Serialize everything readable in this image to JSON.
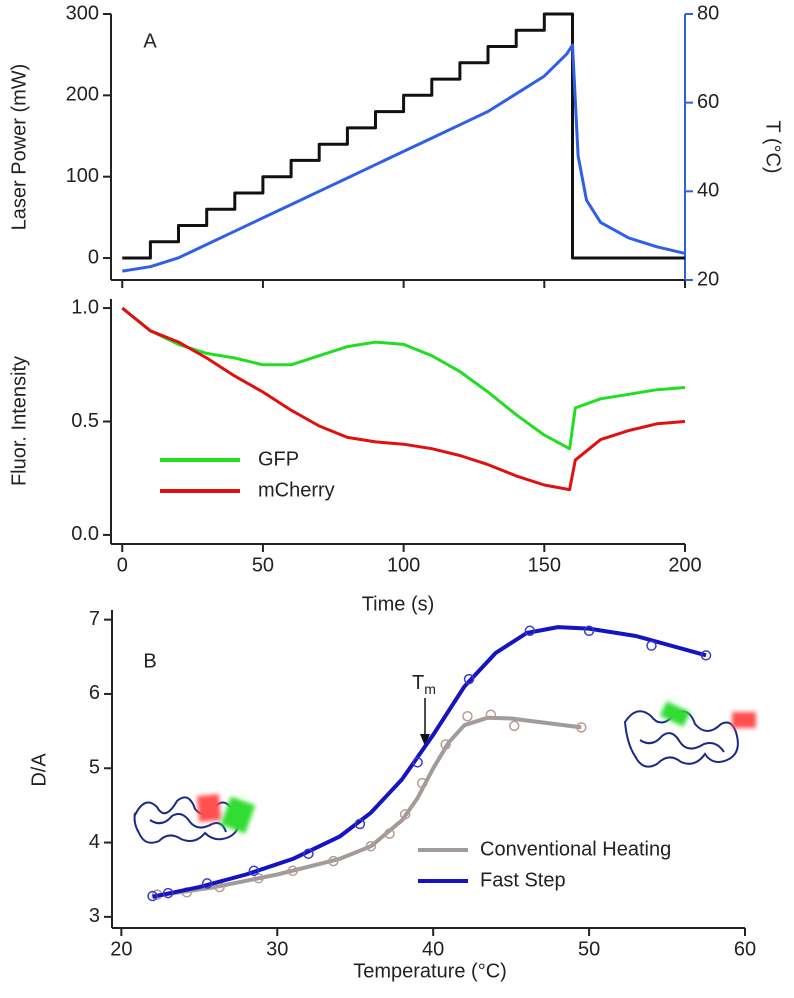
{
  "chart_data": [
    {
      "type": "line",
      "panel_label": "A",
      "ylabel": "Laser Power (mW)",
      "y2label": "T (°C)",
      "xlim": [
        -4,
        200
      ],
      "xticks": [
        0,
        50,
        100,
        150,
        200
      ],
      "ylim": [
        -27,
        300
      ],
      "yticks": [
        0,
        100,
        200,
        300
      ],
      "y2lim": [
        20,
        80
      ],
      "y2ticks": [
        20,
        40,
        60,
        80
      ],
      "y2color": "#2f5fe6",
      "series": [
        {
          "color": "#111111",
          "x": [
            0,
            10,
            10,
            20,
            20,
            30,
            30,
            40,
            40,
            50,
            50,
            60,
            60,
            70,
            70,
            80,
            80,
            90,
            90,
            100,
            100,
            110,
            110,
            120,
            120,
            130,
            130,
            140,
            140,
            150,
            150,
            160,
            160,
            200
          ],
          "values": [
            0,
            0,
            20,
            20,
            40,
            40,
            60,
            60,
            80,
            80,
            100,
            100,
            120,
            120,
            140,
            140,
            160,
            160,
            180,
            180,
            200,
            200,
            220,
            220,
            240,
            240,
            260,
            260,
            280,
            280,
            300,
            300,
            0,
            0
          ]
        },
        {
          "color": "#2f5fe6",
          "axis": "y2",
          "x": [
            0,
            10,
            20,
            30,
            40,
            50,
            60,
            70,
            80,
            90,
            100,
            110,
            120,
            130,
            140,
            150,
            158,
            160,
            162,
            165,
            170,
            180,
            190,
            200
          ],
          "values": [
            22,
            23,
            25,
            28,
            31,
            34,
            37,
            40,
            43,
            46,
            49,
            52,
            55,
            58,
            62,
            66,
            71,
            73,
            48,
            38,
            33,
            29.5,
            27.5,
            26
          ]
        }
      ]
    },
    {
      "type": "line",
      "ylabel": "Fluor. Intensity",
      "xlabel": "Time (s)",
      "legend": "lower-left",
      "xlim": [
        -4,
        200
      ],
      "xticks": [
        0,
        50,
        100,
        150,
        200
      ],
      "ylim": [
        -0.04,
        1.04
      ],
      "yticks": [
        {
          "value": 0,
          "label": "0.0"
        },
        0.5,
        {
          "value": 1,
          "label": "1.0"
        }
      ],
      "series": [
        {
          "name": "GFP",
          "color": "#22dd22",
          "x": [
            0,
            10,
            20,
            30,
            40,
            50,
            60,
            70,
            80,
            90,
            100,
            110,
            120,
            130,
            140,
            150,
            159,
            161,
            170,
            180,
            190,
            200
          ],
          "values": [
            1.0,
            0.9,
            0.84,
            0.8,
            0.78,
            0.75,
            0.75,
            0.79,
            0.83,
            0.85,
            0.84,
            0.79,
            0.72,
            0.63,
            0.53,
            0.44,
            0.38,
            0.56,
            0.6,
            0.62,
            0.64,
            0.65
          ]
        },
        {
          "name": "mCherry",
          "color": "#e01010",
          "x": [
            0,
            10,
            20,
            30,
            40,
            50,
            60,
            70,
            80,
            90,
            100,
            110,
            120,
            130,
            140,
            150,
            159,
            161,
            170,
            180,
            190,
            200
          ],
          "values": [
            1.0,
            0.9,
            0.85,
            0.78,
            0.7,
            0.63,
            0.55,
            0.48,
            0.43,
            0.41,
            0.4,
            0.38,
            0.35,
            0.31,
            0.26,
            0.22,
            0.2,
            0.33,
            0.42,
            0.46,
            0.49,
            0.5
          ]
        }
      ]
    },
    {
      "type": "scatter",
      "panel_label": "B",
      "ylabel": "D/A",
      "xlabel": "Temperature (°C)",
      "legend": "lower-right",
      "annotation": {
        "text": "T",
        "subscript": "m"
      },
      "xlim": [
        19.4,
        60
      ],
      "xticks": [
        20,
        30,
        40,
        50,
        60
      ],
      "ylim": [
        2.85,
        7.13
      ],
      "yticks": [
        3,
        4,
        5,
        6,
        7
      ],
      "series": [
        {
          "name": "Conventional Heating",
          "color": "#a19b99",
          "marker_color": "#b89a94",
          "x": [
            22.3,
            24.2,
            26.3,
            28.8,
            31,
            33.6,
            36,
            37.2,
            38.2,
            39.3,
            40.8,
            42.2,
            43.7,
            45.2,
            49.5
          ],
          "values": [
            3.3,
            3.33,
            3.4,
            3.52,
            3.62,
            3.75,
            3.95,
            4.12,
            4.38,
            4.8,
            5.32,
            5.7,
            5.72,
            5.57,
            5.55
          ],
          "fit_x": [
            22,
            26,
            30,
            34,
            36,
            38,
            39,
            40,
            41,
            42,
            43.5,
            45,
            49.5
          ],
          "fit_values": [
            3.28,
            3.4,
            3.57,
            3.78,
            3.95,
            4.3,
            4.6,
            5.0,
            5.35,
            5.58,
            5.68,
            5.67,
            5.55
          ]
        },
        {
          "name": "Fast Step",
          "color": "#1414c0",
          "marker_color": "#3a3ad0",
          "x": [
            22,
            23,
            25.5,
            28.5,
            32,
            35.3,
            39,
            42.3,
            46.2,
            50,
            54,
            57.5
          ],
          "values": [
            3.28,
            3.32,
            3.45,
            3.62,
            3.85,
            4.25,
            5.08,
            6.2,
            6.85,
            6.85,
            6.65,
            6.52
          ],
          "fit_x": [
            22,
            25,
            28,
            31,
            34,
            36,
            38,
            40,
            42,
            44,
            46,
            48,
            50,
            53,
            57.5
          ],
          "fit_values": [
            3.27,
            3.4,
            3.57,
            3.78,
            4.08,
            4.4,
            4.85,
            5.45,
            6.1,
            6.55,
            6.82,
            6.9,
            6.88,
            6.78,
            6.52
          ]
        }
      ]
    }
  ]
}
